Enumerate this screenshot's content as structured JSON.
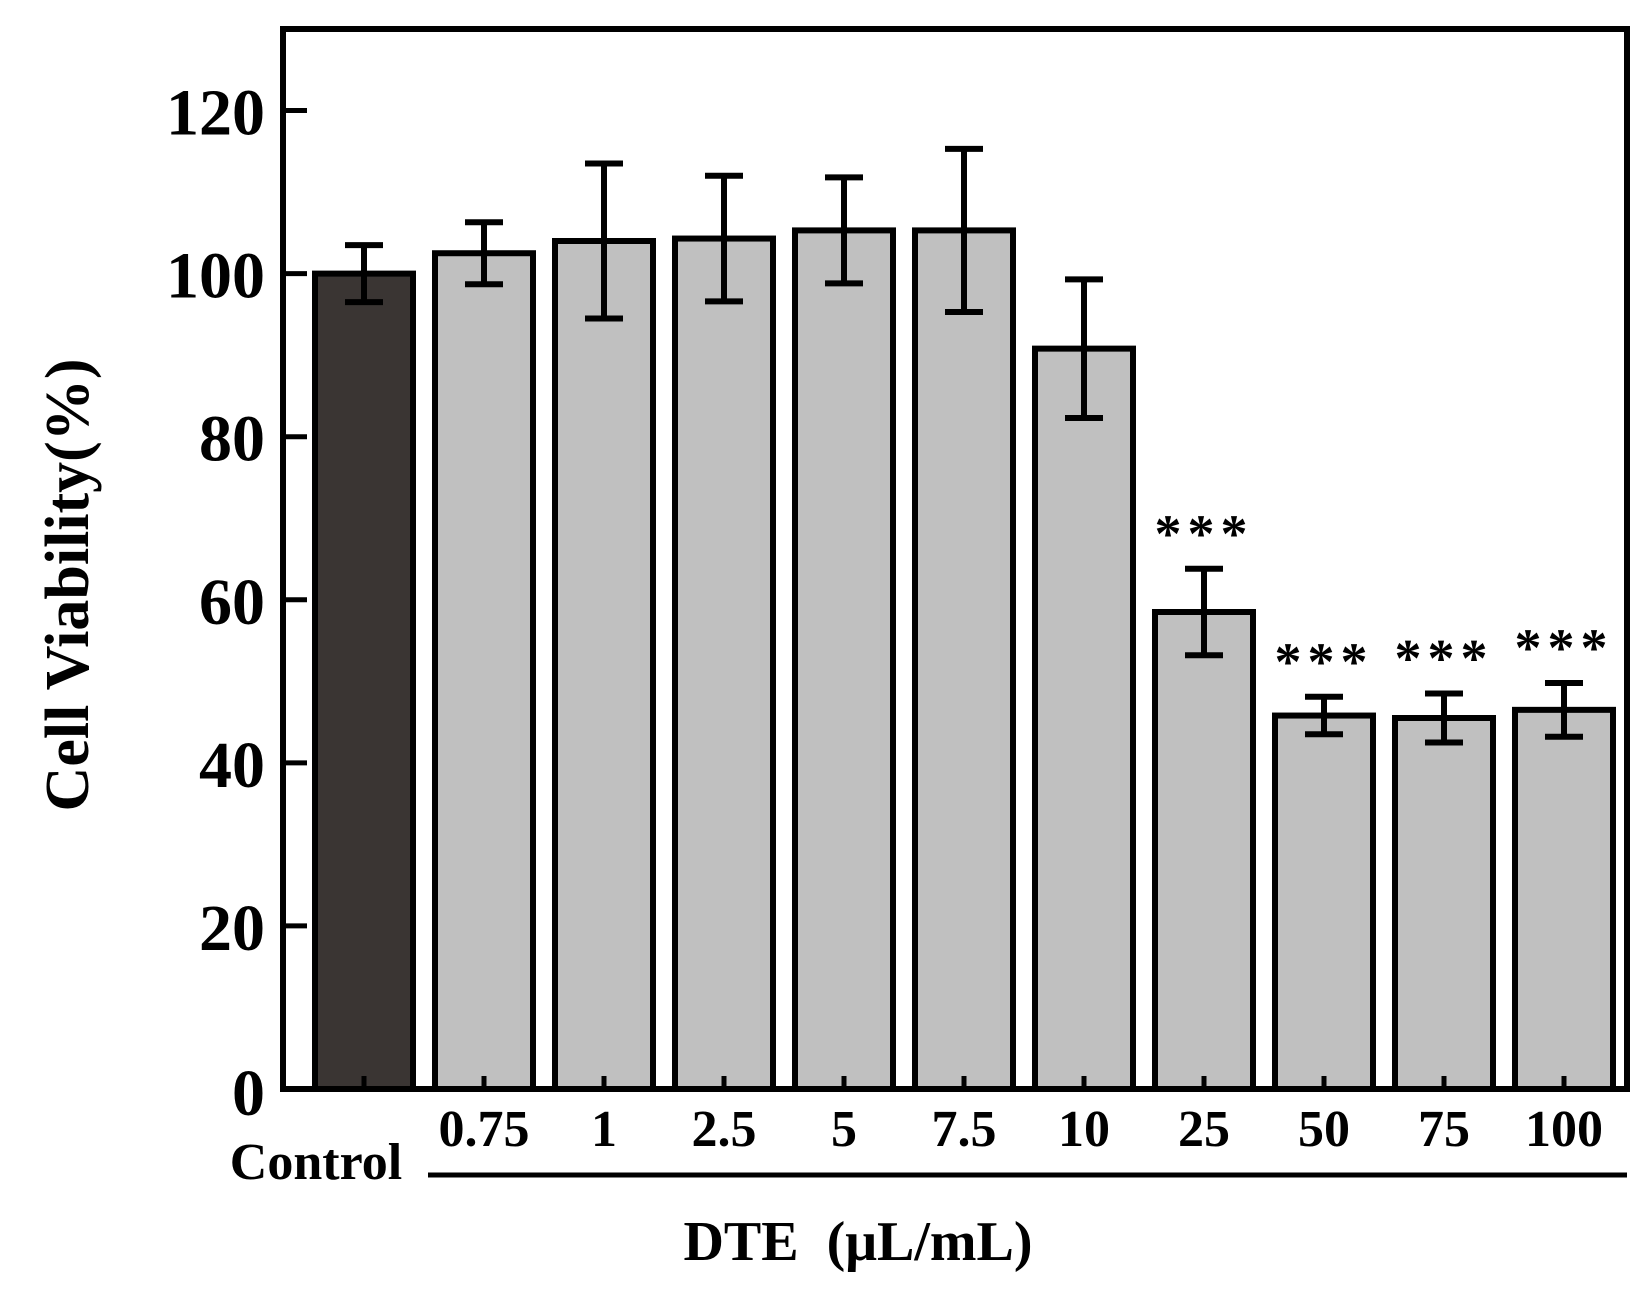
{
  "chart_data": {
    "type": "bar",
    "title": "",
    "ylabel": "Cell Viability(%)",
    "group_label": "DTE  (μL/mL)",
    "ylim": [
      0,
      130
    ],
    "yticks": [
      0,
      20,
      40,
      60,
      80,
      100,
      120
    ],
    "categories": [
      "Control",
      "0.75",
      "1",
      "2.5",
      "5",
      "7.5",
      "10",
      "25",
      "50",
      "75",
      "100"
    ],
    "values": [
      100.0,
      102.5,
      104.0,
      104.3,
      105.3,
      105.3,
      90.8,
      58.5,
      45.8,
      45.5,
      46.5
    ],
    "error": [
      3.5,
      3.8,
      9.5,
      7.7,
      6.5,
      10.0,
      8.5,
      5.3,
      2.3,
      3.0,
      3.3
    ],
    "significance": [
      "",
      "",
      "",
      "",
      "",
      "",
      "",
      "***",
      "***",
      "***",
      "***"
    ],
    "colors": {
      "control": "#3a3533",
      "treatment": "#c0c0c0",
      "stroke": "#000000"
    }
  }
}
